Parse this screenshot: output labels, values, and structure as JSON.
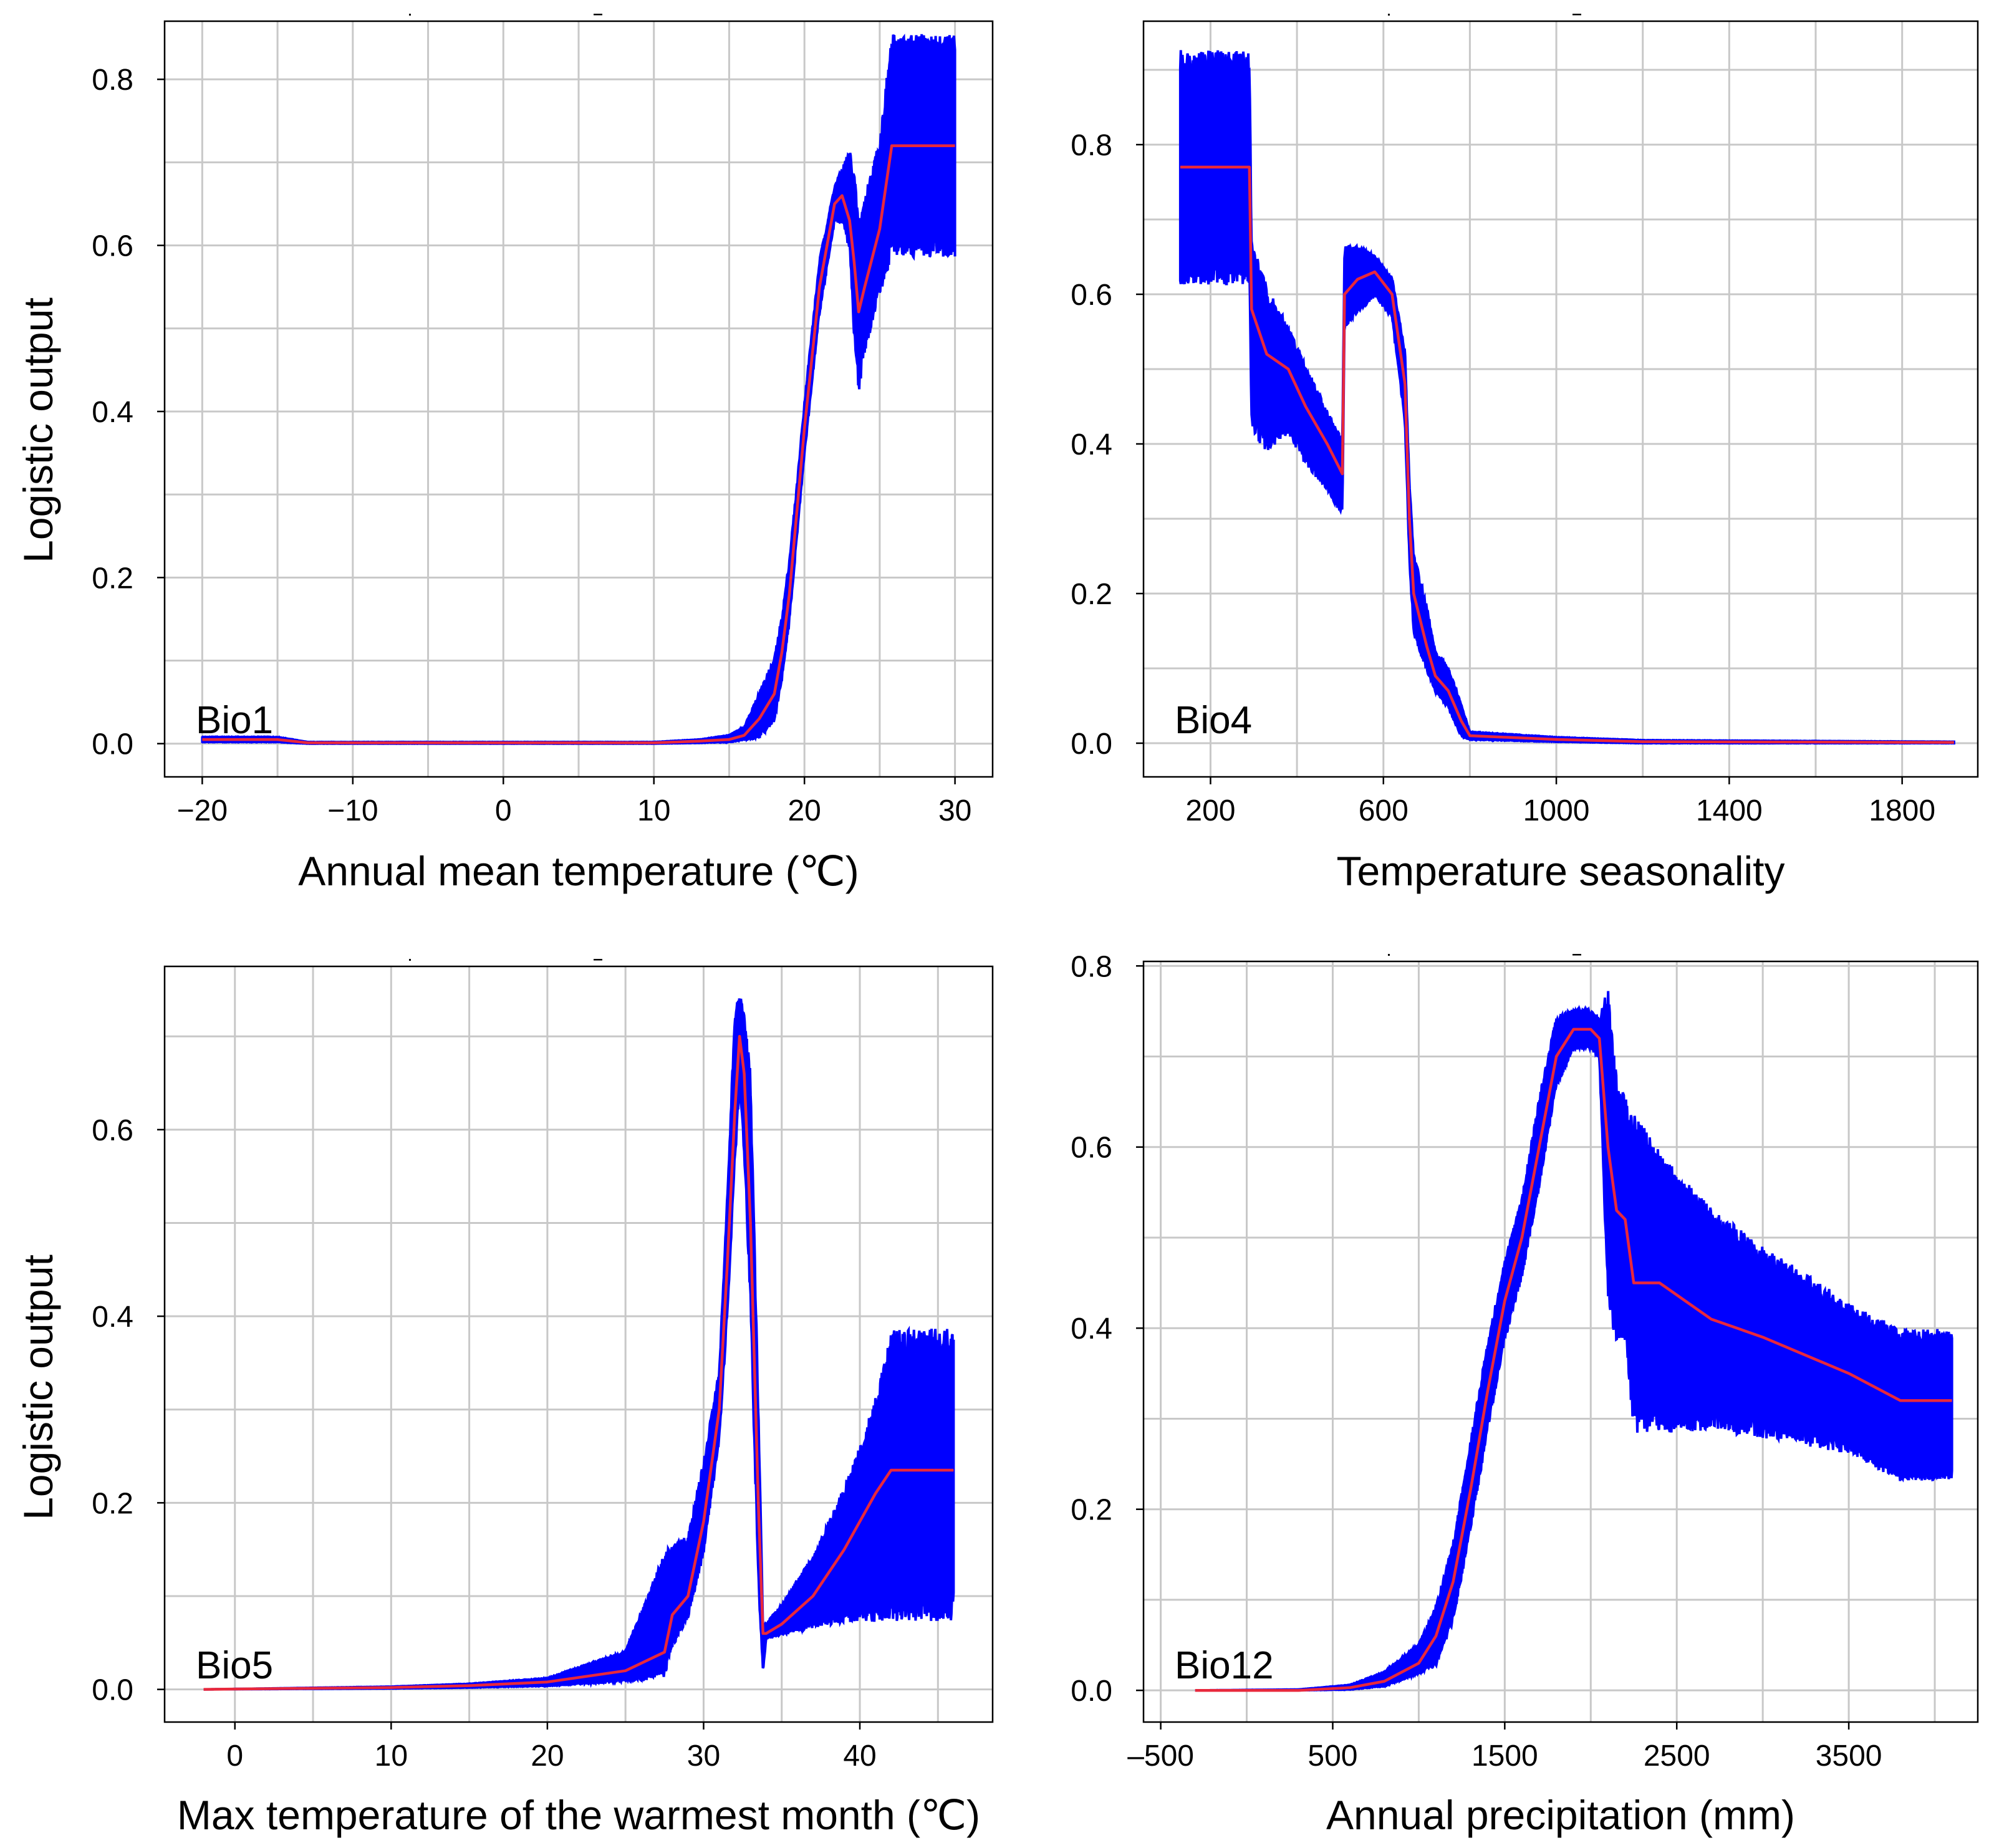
{
  "chart_data": [
    {
      "type": "line",
      "panel_label": "Bio1",
      "xlabel": "Annual mean temperature (℃)",
      "ylabel": "Logistic output",
      "xlim": [
        -22.5,
        32.5
      ],
      "ylim": [
        -0.04,
        0.87
      ],
      "xticks": [
        -20,
        -10,
        0,
        10,
        20,
        30
      ],
      "xtick_labels": [
        "−20",
        "−10",
        "0",
        "10",
        "20",
        "30"
      ],
      "yticks": [
        0.0,
        0.2,
        0.4,
        0.6,
        0.8
      ],
      "ytick_labels": [
        "0.0",
        "0.2",
        "0.4",
        "0.6",
        "0.8"
      ],
      "grid": true,
      "colors": {
        "band": "#0000ff",
        "mean": "#e8283c"
      },
      "series": [
        {
          "role": "mean",
          "x": [
            -20,
            -15,
            -13,
            -10,
            0,
            10,
            13,
            15,
            16,
            17,
            18,
            18.5,
            19,
            19.5,
            20,
            21,
            22,
            22.5,
            23,
            23.3,
            23.6,
            24,
            25,
            25.8,
            30
          ],
          "y": [
            0.005,
            0.005,
            0.001,
            0.001,
            0.001,
            0.001,
            0.003,
            0.005,
            0.01,
            0.03,
            0.06,
            0.11,
            0.18,
            0.28,
            0.38,
            0.55,
            0.65,
            0.66,
            0.63,
            0.58,
            0.52,
            0.55,
            0.62,
            0.72,
            0.72
          ]
        },
        {
          "role": "band-upper",
          "x": [
            -20,
            -15,
            -13,
            -10,
            0,
            10,
            13,
            15,
            16,
            17,
            18,
            18.5,
            19,
            19.5,
            20,
            21,
            22,
            22.5,
            23,
            23.3,
            23.6,
            24,
            25,
            25.8,
            30
          ],
          "y": [
            0.008,
            0.008,
            0.002,
            0.002,
            0.002,
            0.002,
            0.005,
            0.01,
            0.02,
            0.06,
            0.1,
            0.15,
            0.22,
            0.31,
            0.41,
            0.58,
            0.67,
            0.69,
            0.71,
            0.68,
            0.62,
            0.65,
            0.72,
            0.84,
            0.84
          ]
        },
        {
          "role": "band-lower",
          "x": [
            -20,
            -15,
            -13,
            -10,
            0,
            10,
            13,
            15,
            16,
            17,
            18,
            18.5,
            19,
            19.5,
            20,
            21,
            22,
            22.5,
            23,
            23.3,
            23.6,
            24,
            25,
            25.8,
            30
          ],
          "y": [
            0.002,
            0.002,
            0.0,
            0.0,
            0.0,
            0.0,
            0.001,
            0.002,
            0.005,
            0.01,
            0.03,
            0.08,
            0.15,
            0.25,
            0.35,
            0.52,
            0.63,
            0.63,
            0.6,
            0.5,
            0.43,
            0.48,
            0.55,
            0.6,
            0.6
          ]
        }
      ]
    },
    {
      "type": "line",
      "panel_label": "Bio4",
      "xlabel": "Temperature seasonality",
      "ylabel": "",
      "xlim": [
        45,
        1975
      ],
      "ylim": [
        -0.045,
        0.965
      ],
      "xticks": [
        200,
        600,
        1000,
        1400,
        1800
      ],
      "xtick_labels": [
        "200",
        "600",
        "1000",
        "1400",
        "1800"
      ],
      "yticks": [
        0.0,
        0.2,
        0.4,
        0.6,
        0.8
      ],
      "ytick_labels": [
        "0.0",
        "0.2",
        "0.4",
        "0.6",
        "0.8"
      ],
      "grid": true,
      "colors": {
        "band": "#0000ff",
        "mean": "#e8283c"
      },
      "series": [
        {
          "role": "mean",
          "x": [
            130,
            290,
            295,
            330,
            380,
            420,
            470,
            505,
            510,
            540,
            580,
            620,
            650,
            660,
            670,
            700,
            720,
            750,
            780,
            800,
            1000,
            1200,
            1920
          ],
          "y": [
            0.77,
            0.77,
            0.58,
            0.52,
            0.5,
            0.45,
            0.4,
            0.36,
            0.6,
            0.62,
            0.63,
            0.6,
            0.48,
            0.3,
            0.2,
            0.13,
            0.09,
            0.07,
            0.03,
            0.01,
            0.005,
            0.002,
            0.001
          ]
        },
        {
          "role": "band-upper",
          "x": [
            130,
            290,
            295,
            330,
            380,
            420,
            470,
            505,
            510,
            540,
            580,
            620,
            650,
            660,
            670,
            700,
            720,
            750,
            780,
            800,
            1000,
            1200,
            1920
          ],
          "y": [
            0.91,
            0.91,
            0.66,
            0.6,
            0.55,
            0.5,
            0.44,
            0.4,
            0.66,
            0.66,
            0.65,
            0.62,
            0.52,
            0.35,
            0.25,
            0.18,
            0.12,
            0.1,
            0.05,
            0.015,
            0.008,
            0.004,
            0.002
          ]
        },
        {
          "role": "band-lower",
          "x": [
            130,
            290,
            295,
            330,
            380,
            420,
            470,
            505,
            510,
            540,
            580,
            620,
            650,
            660,
            670,
            700,
            720,
            750,
            780,
            800,
            1000,
            1200,
            1920
          ],
          "y": [
            0.63,
            0.63,
            0.43,
            0.4,
            0.42,
            0.38,
            0.34,
            0.31,
            0.56,
            0.58,
            0.6,
            0.57,
            0.43,
            0.25,
            0.15,
            0.1,
            0.07,
            0.05,
            0.01,
            0.005,
            0.002,
            0.0,
            0.0
          ]
        }
      ]
    },
    {
      "type": "line",
      "panel_label": "Bio5",
      "xlabel": "Max temperature of the warmest month (℃)",
      "ylabel": "Logistic output",
      "xlim": [
        -4.5,
        48.5
      ],
      "ylim": [
        -0.035,
        0.775
      ],
      "xticks": [
        0,
        10,
        20,
        30,
        40
      ],
      "xtick_labels": [
        "0",
        "10",
        "20",
        "30",
        "40"
      ],
      "yticks": [
        0.0,
        0.2,
        0.4,
        0.6
      ],
      "ytick_labels": [
        "0.0",
        "0.2",
        "0.4",
        "0.6"
      ],
      "grid": true,
      "colors": {
        "band": "#0000ff",
        "mean": "#e8283c"
      },
      "series": [
        {
          "role": "mean",
          "x": [
            -2,
            10,
            15,
            20,
            25,
            27.5,
            28,
            29,
            30,
            31,
            31.5,
            32,
            32.3,
            32.6,
            33,
            33.5,
            33.8,
            34,
            35,
            37,
            39,
            41,
            42,
            46
          ],
          "y": [
            0.0,
            0.002,
            0.004,
            0.008,
            0.02,
            0.04,
            0.08,
            0.1,
            0.18,
            0.3,
            0.45,
            0.62,
            0.7,
            0.66,
            0.5,
            0.2,
            0.06,
            0.06,
            0.07,
            0.1,
            0.15,
            0.21,
            0.235,
            0.235
          ]
        },
        {
          "role": "band-upper",
          "x": [
            -2,
            10,
            15,
            20,
            25,
            27.5,
            28,
            29,
            30,
            31,
            31.5,
            32,
            32.3,
            32.6,
            33,
            33.5,
            33.8,
            34,
            35,
            37,
            39,
            41,
            42,
            46
          ],
          "y": [
            0.0,
            0.003,
            0.006,
            0.012,
            0.04,
            0.14,
            0.15,
            0.16,
            0.24,
            0.34,
            0.52,
            0.72,
            0.74,
            0.72,
            0.65,
            0.3,
            0.07,
            0.07,
            0.09,
            0.14,
            0.21,
            0.3,
            0.37,
            0.37
          ]
        },
        {
          "role": "band-lower",
          "x": [
            -2,
            10,
            15,
            20,
            25,
            27.5,
            28,
            29,
            30,
            31,
            31.5,
            32,
            32.3,
            32.6,
            33,
            33.5,
            33.8,
            34,
            35,
            37,
            39,
            41,
            42,
            46
          ],
          "y": [
            0.0,
            0.001,
            0.002,
            0.004,
            0.01,
            0.02,
            0.05,
            0.08,
            0.15,
            0.27,
            0.4,
            0.57,
            0.65,
            0.58,
            0.42,
            0.12,
            0.02,
            0.055,
            0.06,
            0.07,
            0.08,
            0.085,
            0.09,
            0.09
          ]
        }
      ]
    },
    {
      "type": "line",
      "panel_label": "Bio12",
      "xlabel": "Annual precipitation (mm)",
      "ylabel": "",
      "xlim": [
        -600,
        4250
      ],
      "ylim": [
        -0.035,
        0.805
      ],
      "xticks": [
        -500,
        500,
        1500,
        2500,
        3500
      ],
      "xtick_labels": [
        "–500",
        "500",
        "1500",
        "2500",
        "3500"
      ],
      "yticks": [
        0.0,
        0.2,
        0.4,
        0.6,
        0.8
      ],
      "ytick_labels": [
        "0.0",
        "0.2",
        "0.4",
        "0.6",
        "0.8"
      ],
      "grid": true,
      "colors": {
        "band": "#0000ff",
        "mean": "#e8283c"
      },
      "series": [
        {
          "role": "mean",
          "x": [
            -300,
            300,
            600,
            800,
            1000,
            1100,
            1200,
            1300,
            1400,
            1500,
            1600,
            1700,
            1800,
            1900,
            2000,
            2050,
            2100,
            2150,
            2200,
            2250,
            2400,
            2550,
            2700,
            3000,
            3500,
            3800,
            4100
          ],
          "y": [
            0.0,
            0.0,
            0.003,
            0.01,
            0.03,
            0.06,
            0.12,
            0.22,
            0.33,
            0.43,
            0.5,
            0.6,
            0.7,
            0.73,
            0.73,
            0.72,
            0.6,
            0.53,
            0.52,
            0.45,
            0.45,
            0.43,
            0.41,
            0.39,
            0.35,
            0.32,
            0.32
          ]
        },
        {
          "role": "band-upper",
          "x": [
            -300,
            300,
            600,
            800,
            1000,
            1100,
            1200,
            1300,
            1400,
            1500,
            1600,
            1700,
            1800,
            1900,
            2000,
            2050,
            2100,
            2150,
            2200,
            2250,
            2400,
            2550,
            2700,
            3000,
            3500,
            3800,
            4100
          ],
          "y": [
            0.0,
            0.001,
            0.006,
            0.02,
            0.05,
            0.09,
            0.16,
            0.27,
            0.38,
            0.47,
            0.54,
            0.65,
            0.74,
            0.75,
            0.75,
            0.74,
            0.76,
            0.66,
            0.64,
            0.62,
            0.58,
            0.55,
            0.52,
            0.48,
            0.42,
            0.39,
            0.39
          ]
        },
        {
          "role": "band-lower",
          "x": [
            -300,
            300,
            600,
            800,
            1000,
            1100,
            1200,
            1300,
            1400,
            1500,
            1600,
            1700,
            1800,
            1900,
            2000,
            2050,
            2100,
            2150,
            2200,
            2250,
            2400,
            2550,
            2700,
            3000,
            3500,
            3800,
            4100
          ],
          "y": [
            0.0,
            0.0,
            0.001,
            0.005,
            0.02,
            0.03,
            0.08,
            0.18,
            0.29,
            0.39,
            0.46,
            0.56,
            0.67,
            0.71,
            0.71,
            0.7,
            0.44,
            0.4,
            0.4,
            0.3,
            0.3,
            0.3,
            0.3,
            0.29,
            0.27,
            0.24,
            0.24
          ]
        }
      ]
    }
  ]
}
